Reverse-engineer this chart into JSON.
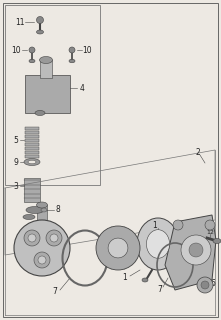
{
  "bg_color": "#ede9e3",
  "line_color": "#444444",
  "part_color": "#888888",
  "dark_part": "#444444",
  "fig_width": 2.21,
  "fig_height": 3.2,
  "dpi": 100
}
